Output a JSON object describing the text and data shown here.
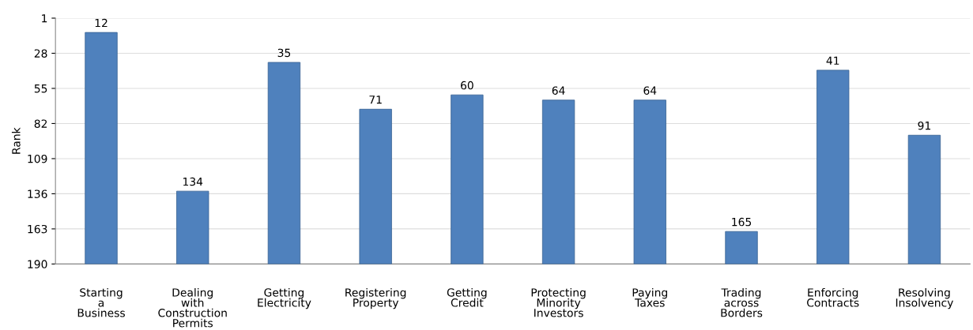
{
  "chart_data": {
    "type": "bar",
    "ylabel": "Rank",
    "categories": [
      "Starting\na\nBusiness",
      "Dealing\nwith\nConstruction\nPermits",
      "Getting\nElectricity",
      "Registering\nProperty",
      "Getting\nCredit",
      "Protecting\nMinority\nInvestors",
      "Paying\nTaxes",
      "Trading\nacross\nBorders",
      "Enforcing\nContracts",
      "Resolving\nInsolvency"
    ],
    "base": [
      190,
      190,
      190,
      190,
      190,
      190,
      190,
      190,
      190,
      190
    ],
    "values": [
      -178,
      -56,
      -155,
      -119,
      -130,
      -126,
      -126,
      -25,
      -149,
      -99
    ],
    "value_labels": [
      "12",
      "134",
      "35",
      "71",
      "60",
      "64",
      "64",
      "165",
      "41",
      "91"
    ],
    "color": "#4f81bd",
    "ylim": [
      190,
      1
    ],
    "yticks": [
      1,
      28,
      55,
      82,
      109,
      136,
      163,
      190
    ],
    "grid": "y"
  }
}
